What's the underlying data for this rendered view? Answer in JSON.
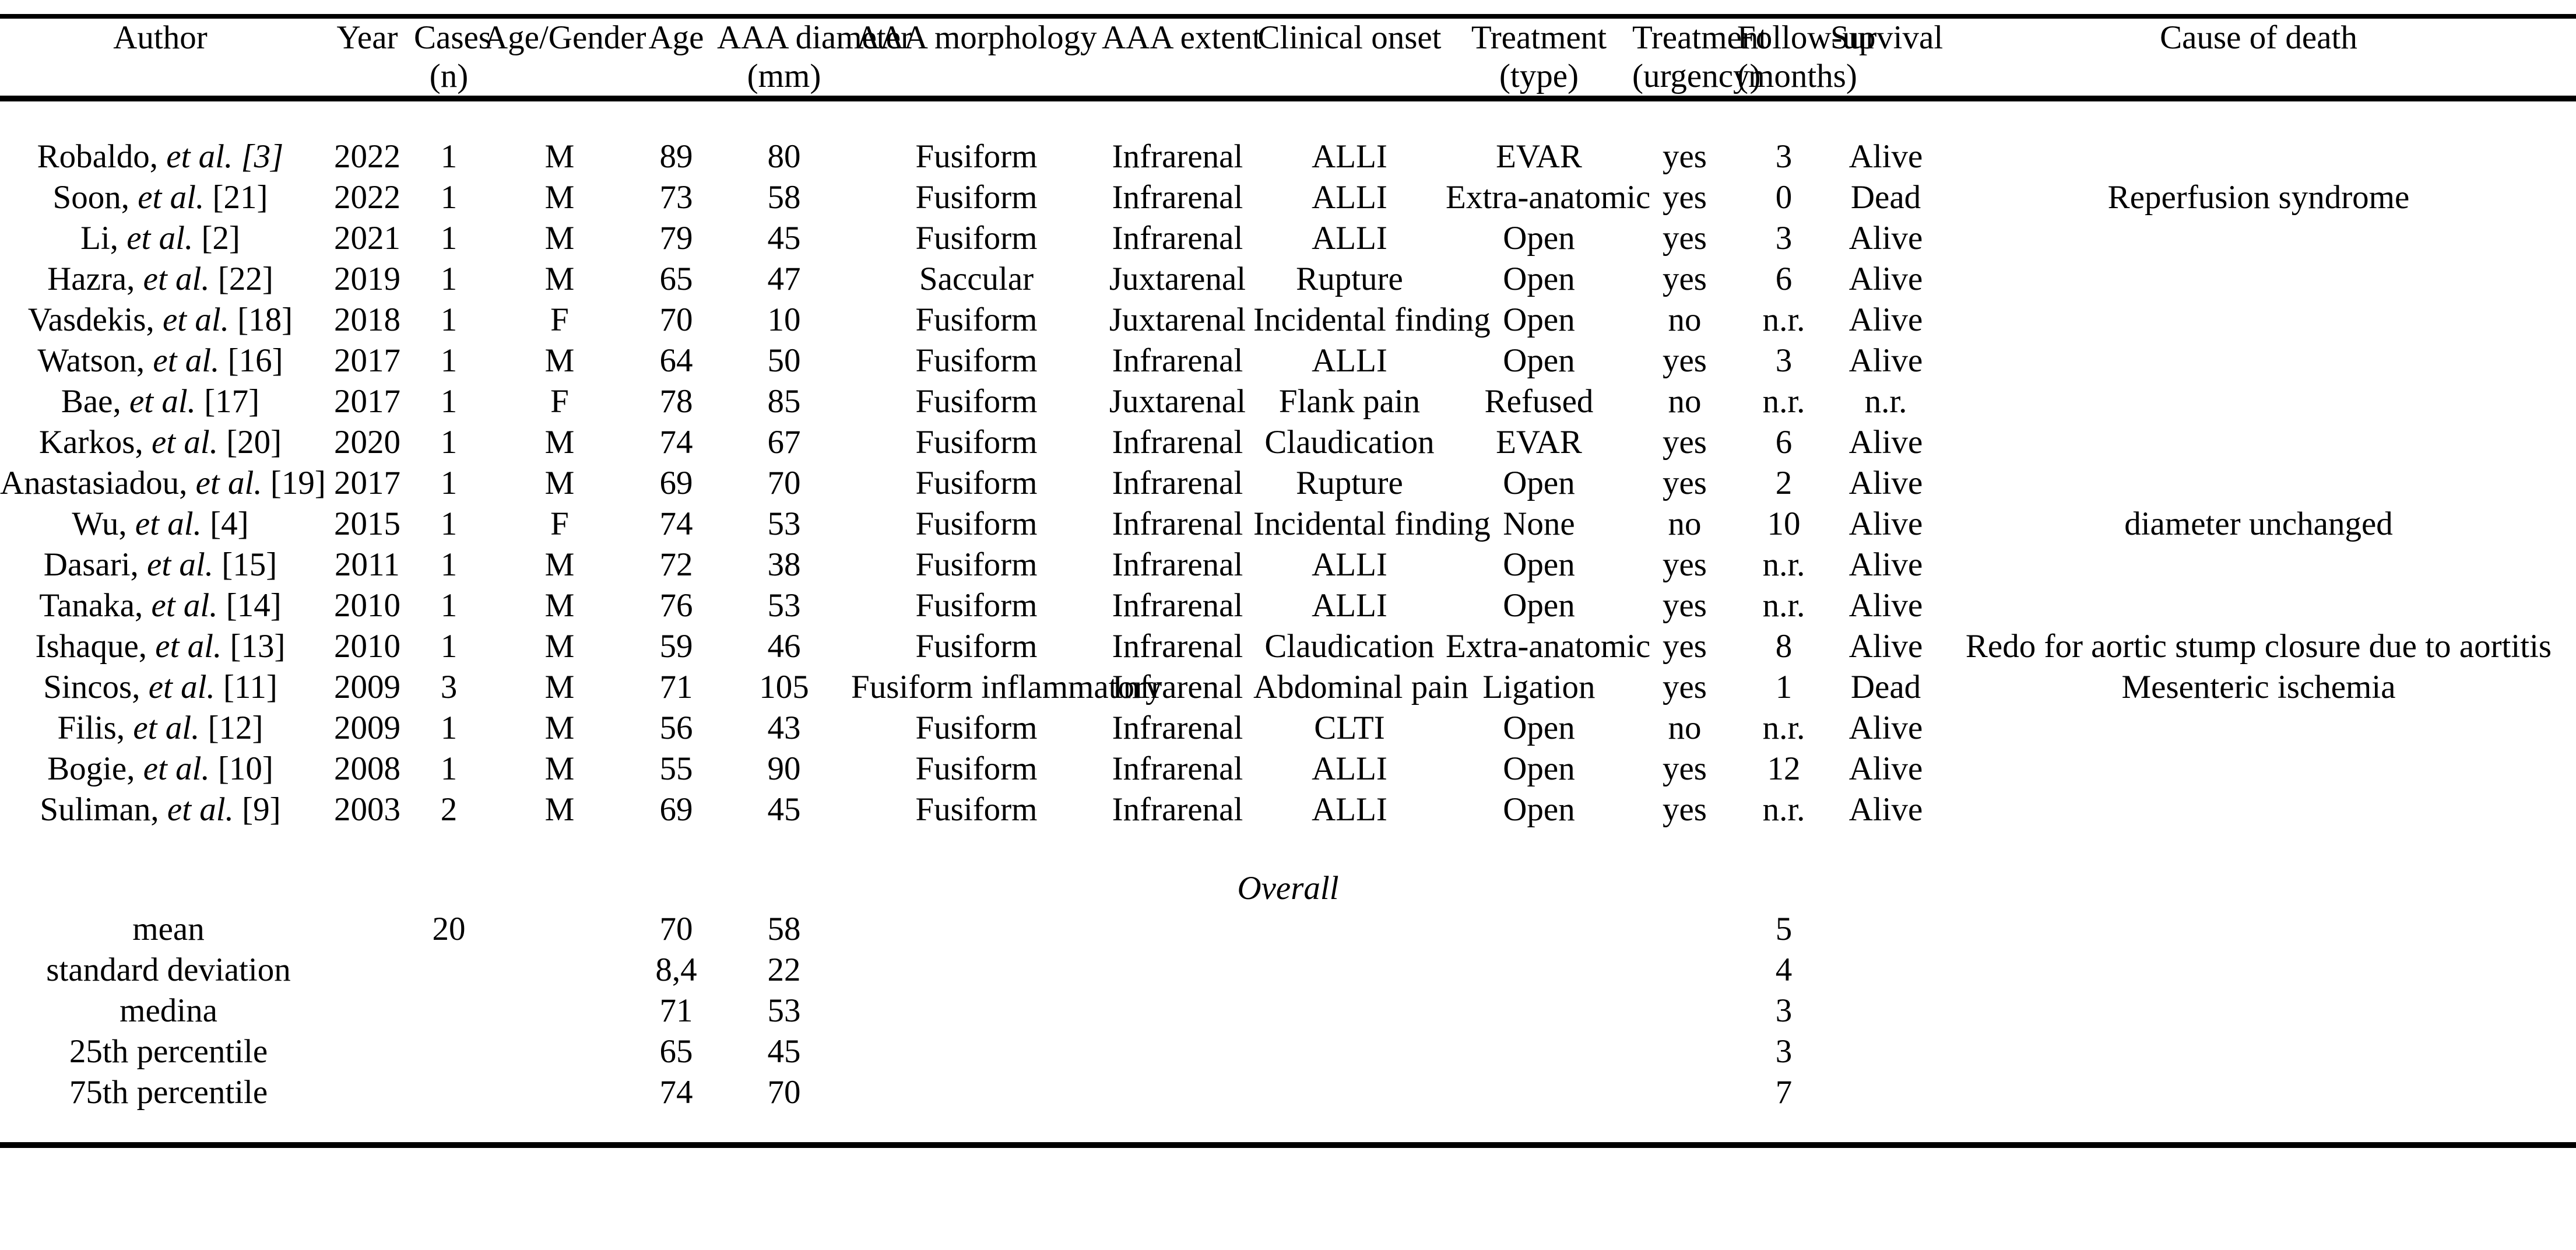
{
  "table": {
    "columns": [
      {
        "key": "author",
        "line1": "Author",
        "line2": ""
      },
      {
        "key": "year",
        "line1": "Year",
        "line2": ""
      },
      {
        "key": "cases",
        "line1": "Cases",
        "line2": "(n)"
      },
      {
        "key": "gender",
        "line1": "Age/Gender",
        "line2": ""
      },
      {
        "key": "age",
        "line1": "Age",
        "line2": ""
      },
      {
        "key": "diameter",
        "line1": "AAA diameter",
        "line2": "(mm)"
      },
      {
        "key": "morphology",
        "line1": "AAA morphology",
        "line2": ""
      },
      {
        "key": "extent",
        "line1": "AAA extent",
        "line2": ""
      },
      {
        "key": "onset",
        "line1": "Clinical onset",
        "line2": ""
      },
      {
        "key": "treatment",
        "line1": "Treatment",
        "line2": "(type)"
      },
      {
        "key": "urgency",
        "line1": "Treatment",
        "line2": "(urgency)"
      },
      {
        "key": "followup",
        "line1": "Follow-up",
        "line2": "(months)"
      },
      {
        "key": "survival",
        "line1": "Survival",
        "line2": ""
      },
      {
        "key": "cause",
        "line1": "Cause of death",
        "line2": ""
      }
    ],
    "rows": [
      {
        "author": {
          "name": "Robaldo,",
          "etal": "et al.",
          "ref": "[3]",
          "ref_italic": true
        },
        "year": "2022",
        "cases": "1",
        "gender": "M",
        "age": "89",
        "diameter": "80",
        "morphology": "Fusiform",
        "extent": "Infrarenal",
        "onset": "ALLI",
        "treatment": "EVAR",
        "urgency": "yes",
        "followup": "3",
        "survival": "Alive",
        "cause": ""
      },
      {
        "author": {
          "name": "Soon,",
          "etal": "et al.",
          "ref": "[21]",
          "ref_italic": false
        },
        "year": "2022",
        "cases": "1",
        "gender": "M",
        "age": "73",
        "diameter": "58",
        "morphology": "Fusiform",
        "extent": "Infrarenal",
        "onset": "ALLI",
        "treatment": "Extra-anatomic",
        "urgency": "yes",
        "followup": "0",
        "survival": "Dead",
        "cause": "Reperfusion syndrome"
      },
      {
        "author": {
          "name": "Li,",
          "etal": "et al.",
          "ref": "[2]",
          "ref_italic": false
        },
        "year": "2021",
        "cases": "1",
        "gender": "M",
        "age": "79",
        "diameter": "45",
        "morphology": "Fusiform",
        "extent": "Infrarenal",
        "onset": "ALLI",
        "treatment": "Open",
        "urgency": "yes",
        "followup": "3",
        "survival": "Alive",
        "cause": ""
      },
      {
        "author": {
          "name": "Hazra,",
          "etal": "et al.",
          "ref": "[22]",
          "ref_italic": false
        },
        "year": "2019",
        "cases": "1",
        "gender": "M",
        "age": "65",
        "diameter": "47",
        "morphology": "Saccular",
        "extent": "Juxtarenal",
        "onset": "Rupture",
        "treatment": "Open",
        "urgency": "yes",
        "followup": "6",
        "survival": "Alive",
        "cause": ""
      },
      {
        "author": {
          "name": "Vasdekis,",
          "etal": "et al.",
          "ref": "[18]",
          "ref_italic": false
        },
        "year": "2018",
        "cases": "1",
        "gender": "F",
        "age": "70",
        "diameter": "10",
        "morphology": "Fusiform",
        "extent": "Juxtarenal",
        "onset": "Incidental finding",
        "treatment": "Open",
        "urgency": "no",
        "followup": "n.r.",
        "survival": "Alive",
        "cause": ""
      },
      {
        "author": {
          "name": "Watson,",
          "etal": "et al.",
          "ref": "[16]",
          "ref_italic": false
        },
        "year": "2017",
        "cases": "1",
        "gender": "M",
        "age": "64",
        "diameter": "50",
        "morphology": "Fusiform",
        "extent": "Infrarenal",
        "onset": "ALLI",
        "treatment": "Open",
        "urgency": "yes",
        "followup": "3",
        "survival": "Alive",
        "cause": ""
      },
      {
        "author": {
          "name": "Bae,",
          "etal": "et al.",
          "ref": "[17]",
          "ref_italic": false
        },
        "year": "2017",
        "cases": "1",
        "gender": "F",
        "age": "78",
        "diameter": "85",
        "morphology": "Fusiform",
        "extent": "Juxtarenal",
        "onset": "Flank pain",
        "treatment": "Refused",
        "urgency": "no",
        "followup": "n.r.",
        "survival": "n.r.",
        "cause": ""
      },
      {
        "author": {
          "name": "Karkos,",
          "etal": "et al.",
          "ref": "[20]",
          "ref_italic": false
        },
        "year": "2020",
        "cases": "1",
        "gender": "M",
        "age": "74",
        "diameter": "67",
        "morphology": "Fusiform",
        "extent": "Infrarenal",
        "onset": "Claudication",
        "treatment": "EVAR",
        "urgency": "yes",
        "followup": "6",
        "survival": "Alive",
        "cause": ""
      },
      {
        "author": {
          "name": "Anastasiadou,",
          "etal": "et al.",
          "ref": "[19]",
          "ref_italic": false
        },
        "year": "2017",
        "cases": "1",
        "gender": "M",
        "age": "69",
        "diameter": "70",
        "morphology": "Fusiform",
        "extent": "Infrarenal",
        "onset": "Rupture",
        "treatment": "Open",
        "urgency": "yes",
        "followup": "2",
        "survival": "Alive",
        "cause": ""
      },
      {
        "author": {
          "name": "Wu,",
          "etal": "et al.",
          "ref": "[4]",
          "ref_italic": false
        },
        "year": "2015",
        "cases": "1",
        "gender": "F",
        "age": "74",
        "diameter": "53",
        "morphology": "Fusiform",
        "extent": "Infrarenal",
        "onset": "Incidental finding",
        "treatment": "None",
        "urgency": "no",
        "followup": "10",
        "survival": "Alive",
        "cause": "diameter unchanged"
      },
      {
        "author": {
          "name": "Dasari,",
          "etal": "et al.",
          "ref": "[15]",
          "ref_italic": false
        },
        "year": "2011",
        "cases": "1",
        "gender": "M",
        "age": "72",
        "diameter": "38",
        "morphology": "Fusiform",
        "extent": "Infrarenal",
        "onset": "ALLI",
        "treatment": "Open",
        "urgency": "yes",
        "followup": "n.r.",
        "survival": "Alive",
        "cause": ""
      },
      {
        "author": {
          "name": "Tanaka,",
          "etal": "et al.",
          "ref": "[14]",
          "ref_italic": false
        },
        "year": "2010",
        "cases": "1",
        "gender": "M",
        "age": "76",
        "diameter": "53",
        "morphology": "Fusiform",
        "extent": "Infrarenal",
        "onset": "ALLI",
        "treatment": "Open",
        "urgency": "yes",
        "followup": "n.r.",
        "survival": "Alive",
        "cause": ""
      },
      {
        "author": {
          "name": "Ishaque,",
          "etal": "et al.",
          "ref": "[13]",
          "ref_italic": false
        },
        "year": "2010",
        "cases": "1",
        "gender": "M",
        "age": "59",
        "diameter": "46",
        "morphology": "Fusiform",
        "extent": "Infrarenal",
        "onset": "Claudication",
        "treatment": "Extra-anatomic",
        "urgency": "yes",
        "followup": "8",
        "survival": "Alive",
        "cause": "Redo for aortic stump closure due to aortitis"
      },
      {
        "author": {
          "name": "Sincos,",
          "etal": "et al.",
          "ref": "[11]",
          "ref_italic": false
        },
        "year": "2009",
        "cases": "3",
        "gender": "M",
        "age": "71",
        "diameter": "105",
        "morphology": "Fusiform inflammatory",
        "extent": "Infrarenal",
        "onset": "Abdominal pain",
        "treatment": "Ligation",
        "urgency": "yes",
        "followup": "1",
        "survival": "Dead",
        "cause": "Mesenteric ischemia"
      },
      {
        "author": {
          "name": "Filis,",
          "etal": "et al.",
          "ref": "[12]",
          "ref_italic": false
        },
        "year": "2009",
        "cases": "1",
        "gender": "M",
        "age": "56",
        "diameter": "43",
        "morphology": "Fusiform",
        "extent": "Infrarenal",
        "onset": "CLTI",
        "treatment": "Open",
        "urgency": "no",
        "followup": "n.r.",
        "survival": "Alive",
        "cause": ""
      },
      {
        "author": {
          "name": "Bogie,",
          "etal": "et al.",
          "ref": "[10]",
          "ref_italic": false
        },
        "year": "2008",
        "cases": "1",
        "gender": "M",
        "age": "55",
        "diameter": "90",
        "morphology": "Fusiform",
        "extent": "Infrarenal",
        "onset": "ALLI",
        "treatment": "Open",
        "urgency": "yes",
        "followup": "12",
        "survival": "Alive",
        "cause": ""
      },
      {
        "author": {
          "name": "Suliman,",
          "etal": "et al.",
          "ref": "[9]",
          "ref_italic": false
        },
        "year": "2003",
        "cases": "2",
        "gender": "M",
        "age": "69",
        "diameter": "45",
        "morphology": "Fusiform",
        "extent": "Infrarenal",
        "onset": "ALLI",
        "treatment": "Open",
        "urgency": "yes",
        "followup": "n.r.",
        "survival": "Alive",
        "cause": ""
      }
    ],
    "overall": {
      "label": "Overall",
      "rows": [
        {
          "label": "mean",
          "cases": "20",
          "age": "70",
          "diameter": "58",
          "followup": "5"
        },
        {
          "label": "standard deviation",
          "cases": "",
          "age": "8,4",
          "diameter": "22",
          "followup": "4"
        },
        {
          "label": "medina",
          "cases": "",
          "age": "71",
          "diameter": "53",
          "followup": "3"
        },
        {
          "label": "25th percentile",
          "cases": "",
          "age": "65",
          "diameter": "45",
          "followup": "3"
        },
        {
          "label": "75th percentile",
          "cases": "",
          "age": "74",
          "diameter": "70",
          "followup": "7"
        }
      ]
    }
  }
}
